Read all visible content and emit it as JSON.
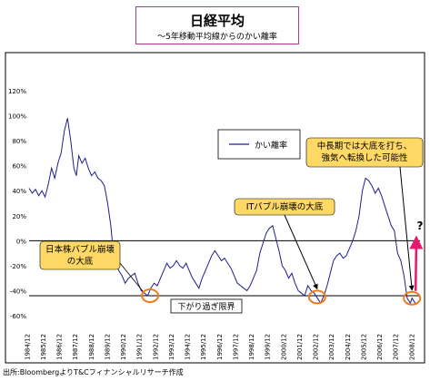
{
  "header": {
    "title": "日経平均",
    "subtitle": "～5年移動平均線からのかい離率"
  },
  "footer": {
    "source": "出所:BloombergよりT&Cフィナンシャルリサーチ作成"
  },
  "colors": {
    "line": "#1f1f8a",
    "callout_fill": "#ffd966",
    "circle": "#f07b1c",
    "arrow": "#e5196e",
    "title_border": "#b0398c"
  },
  "chart_data": {
    "type": "line",
    "title": "",
    "xlabel": "",
    "ylabel": "",
    "ylim": [
      -60,
      120
    ],
    "y_ticks": [
      -60,
      -40,
      -20,
      0,
      20,
      40,
      60,
      80,
      100,
      120
    ],
    "y_tick_labels": [
      "-60%",
      "-40%",
      "-20%",
      "0%",
      "20%",
      "40%",
      "60%",
      "80%",
      "100%",
      "120%"
    ],
    "x_tick_labels": [
      "1984/12",
      "1985/12",
      "1986/12",
      "1987/12",
      "1988/12",
      "1989/12",
      "1990/12",
      "1991/12",
      "1992/12",
      "1993/12",
      "1994/12",
      "1995/12",
      "1996/12",
      "1997/12",
      "1998/12",
      "1999/12",
      "2000/12",
      "2001/12",
      "2002/12",
      "2003/12",
      "2004/12",
      "2005/12",
      "2006/12",
      "2007/12",
      "2008/12"
    ],
    "xlim": [
      1984.9,
      2009.3
    ],
    "legend": {
      "label": "かい離率",
      "position": "top-right"
    },
    "grid": false,
    "series": [
      {
        "name": "かい離率",
        "x": [
          1984.9,
          1985.1,
          1985.3,
          1985.5,
          1985.7,
          1985.9,
          1986.1,
          1986.3,
          1986.5,
          1986.7,
          1986.9,
          1987.1,
          1987.3,
          1987.5,
          1987.7,
          1987.85,
          1988.0,
          1988.2,
          1988.4,
          1988.6,
          1988.8,
          1989.0,
          1989.2,
          1989.4,
          1989.6,
          1989.8,
          1990.0,
          1990.15,
          1990.3,
          1990.5,
          1990.7,
          1990.9,
          1991.1,
          1991.3,
          1991.5,
          1991.7,
          1991.9,
          1992.1,
          1992.3,
          1992.5,
          1992.7,
          1992.9,
          1993.1,
          1993.3,
          1993.5,
          1993.7,
          1993.9,
          1994.1,
          1994.3,
          1994.5,
          1994.7,
          1994.9,
          1995.1,
          1995.3,
          1995.5,
          1995.7,
          1995.9,
          1996.1,
          1996.3,
          1996.5,
          1996.7,
          1996.9,
          1997.1,
          1997.3,
          1997.5,
          1997.7,
          1997.9,
          1998.1,
          1998.3,
          1998.5,
          1998.7,
          1998.9,
          1999.1,
          1999.3,
          1999.5,
          1999.7,
          1999.9,
          2000.1,
          2000.3,
          2000.5,
          2000.7,
          2000.9,
          2001.1,
          2001.3,
          2001.5,
          2001.7,
          2001.9,
          2002.1,
          2002.3,
          2002.5,
          2002.7,
          2002.9,
          2003.1,
          2003.3,
          2003.5,
          2003.7,
          2003.9,
          2004.1,
          2004.3,
          2004.5,
          2004.7,
          2004.9,
          2005.1,
          2005.3,
          2005.5,
          2005.7,
          2005.9,
          2006.1,
          2006.3,
          2006.5,
          2006.7,
          2006.9,
          2007.1,
          2007.3,
          2007.5,
          2007.7,
          2007.9,
          2008.1,
          2008.3,
          2008.5,
          2008.7,
          2008.8,
          2008.9,
          2009.0
        ],
        "values": [
          42,
          38,
          41,
          36,
          40,
          35,
          45,
          58,
          50,
          62,
          70,
          88,
          98,
          80,
          58,
          52,
          68,
          62,
          66,
          58,
          52,
          55,
          50,
          48,
          44,
          30,
          12,
          -8,
          -18,
          -24,
          -28,
          -34,
          -30,
          -28,
          -26,
          -34,
          -40,
          -42,
          -44,
          -38,
          -34,
          -36,
          -30,
          -24,
          -18,
          -22,
          -20,
          -16,
          -20,
          -22,
          -18,
          -24,
          -30,
          -34,
          -38,
          -30,
          -24,
          -18,
          -12,
          -8,
          -12,
          -16,
          -14,
          -18,
          -22,
          -28,
          -34,
          -36,
          -38,
          -40,
          -36,
          -30,
          -24,
          -10,
          -2,
          6,
          10,
          12,
          2,
          -8,
          -20,
          -24,
          -30,
          -26,
          -34,
          -40,
          -42,
          -44,
          -36,
          -40,
          -42,
          -46,
          -50,
          -44,
          -36,
          -26,
          -16,
          -12,
          -10,
          -14,
          -12,
          -6,
          0,
          8,
          20,
          40,
          50,
          48,
          44,
          38,
          42,
          36,
          28,
          20,
          12,
          8,
          -10,
          -16,
          -28,
          -46,
          -50,
          -46,
          -48,
          -50
        ]
      }
    ],
    "annotations": [
      {
        "text": "日本株バブル崩壊の大底",
        "x": 1992.5,
        "y": -44
      },
      {
        "text": "ITバブル崩壊の大底",
        "x": 2002.9,
        "y": -44
      },
      {
        "text": "中長期では大底を打ち、強気へ転換した可能性",
        "x": 2008.8,
        "y": -46
      },
      {
        "text": "下がり過ぎ限界",
        "y": -44
      },
      {
        "text": "?",
        "x": 2009.3
      }
    ]
  },
  "callouts": {
    "bubble": {
      "line1": "日本株バブル崩壊",
      "line2": "の大底"
    },
    "it_bubble": {
      "line1": "ITバブル崩壊の大底"
    },
    "long_term": {
      "line1": "中長期では大底を打ち、",
      "line2": "強気へ転換した可能性"
    },
    "limit_label": "下がり過ぎ限界",
    "question": "?"
  }
}
